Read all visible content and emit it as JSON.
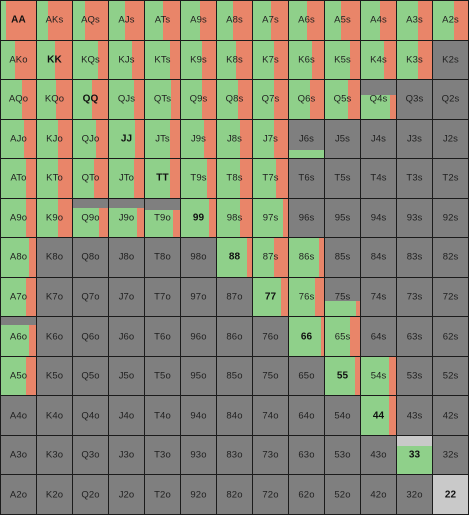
{
  "ranks": [
    "A",
    "K",
    "Q",
    "J",
    "T",
    "9",
    "8",
    "7",
    "6",
    "5",
    "4",
    "3",
    "2"
  ],
  "colors": {
    "call": "#8fd08a",
    "raise": "#e98569",
    "fold": "#7f7f7f",
    "highlight": "#c9c9c9",
    "border": "#1b1b1b"
  },
  "hands": [
    [
      "AA",
      "AKs",
      "AQs",
      "AJs",
      "ATs",
      "A9s",
      "A8s",
      "A7s",
      "A6s",
      "A5s",
      "A4s",
      "A3s",
      "A2s"
    ],
    [
      "AKo",
      "KK",
      "KQs",
      "KJs",
      "KTs",
      "K9s",
      "K8s",
      "K7s",
      "K6s",
      "K5s",
      "K4s",
      "K3s",
      "K2s"
    ],
    [
      "AQo",
      "KQo",
      "QQ",
      "QJs",
      "QTs",
      "Q9s",
      "Q8s",
      "Q7s",
      "Q6s",
      "Q5s",
      "Q4s",
      "Q3s",
      "Q2s"
    ],
    [
      "AJo",
      "KJo",
      "QJo",
      "JJ",
      "JTs",
      "J9s",
      "J8s",
      "J7s",
      "J6s",
      "J5s",
      "J4s",
      "J3s",
      "J2s"
    ],
    [
      "ATo",
      "KTo",
      "QTo",
      "JTo",
      "TT",
      "T9s",
      "T8s",
      "T7s",
      "T6s",
      "T5s",
      "T4s",
      "T3s",
      "T2s"
    ],
    [
      "A9o",
      "K9o",
      "Q9o",
      "J9o",
      "T9o",
      "99",
      "98s",
      "97s",
      "96s",
      "95s",
      "94s",
      "93s",
      "92s"
    ],
    [
      "A8o",
      "K8o",
      "Q8o",
      "J8o",
      "T8o",
      "98o",
      "88",
      "87s",
      "86s",
      "85s",
      "84s",
      "83s",
      "82s"
    ],
    [
      "A7o",
      "K7o",
      "Q7o",
      "J7o",
      "T7o",
      "97o",
      "87o",
      "77",
      "76s",
      "75s",
      "74s",
      "73s",
      "72s"
    ],
    [
      "A6o",
      "K6o",
      "Q6o",
      "J6o",
      "T6o",
      "96o",
      "86o",
      "76o",
      "66",
      "65s",
      "64s",
      "63s",
      "62s"
    ],
    [
      "A5o",
      "K5o",
      "Q5o",
      "J5o",
      "T5o",
      "95o",
      "85o",
      "75o",
      "65o",
      "55",
      "54s",
      "53s",
      "52s"
    ],
    [
      "A4o",
      "K4o",
      "Q4o",
      "J4o",
      "T4o",
      "94o",
      "84o",
      "74o",
      "64o",
      "54o",
      "44",
      "43s",
      "42s"
    ],
    [
      "A3o",
      "K3o",
      "Q3o",
      "J3o",
      "T3o",
      "93o",
      "83o",
      "73o",
      "63o",
      "53o",
      "43o",
      "33",
      "32s"
    ],
    [
      "A2o",
      "K2o",
      "Q2o",
      "J2o",
      "T2o",
      "92o",
      "82o",
      "72o",
      "62o",
      "52o",
      "42o",
      "32o",
      "22"
    ]
  ],
  "frequencies": {
    "AA": {
      "call": 0.15,
      "raise": 0.85,
      "fold": 0
    },
    "AKs": {
      "call": 0.3,
      "raise": 0.7,
      "fold": 0
    },
    "AQs": {
      "call": 0.35,
      "raise": 0.65,
      "fold": 0
    },
    "AJs": {
      "call": 0.45,
      "raise": 0.55,
      "fold": 0
    },
    "ATs": {
      "call": 0.5,
      "raise": 0.5,
      "fold": 0
    },
    "A9s": {
      "call": 0.55,
      "raise": 0.45,
      "fold": 0
    },
    "A8s": {
      "call": 0.45,
      "raise": 0.55,
      "fold": 0
    },
    "A7s": {
      "call": 0.5,
      "raise": 0.5,
      "fold": 0
    },
    "A6s": {
      "call": 0.5,
      "raise": 0.5,
      "fold": 0
    },
    "A5s": {
      "call": 0.45,
      "raise": 0.55,
      "fold": 0
    },
    "A4s": {
      "call": 0.55,
      "raise": 0.45,
      "fold": 0
    },
    "A3s": {
      "call": 0.6,
      "raise": 0.4,
      "fold": 0
    },
    "A2s": {
      "call": 0.6,
      "raise": 0.4,
      "fold": 0
    },
    "AKo": {
      "call": 0.4,
      "raise": 0.6,
      "fold": 0
    },
    "KK": {
      "call": 0.5,
      "raise": 0.5,
      "fold": 0
    },
    "KQs": {
      "call": 0.7,
      "raise": 0.3,
      "fold": 0
    },
    "KJs": {
      "call": 0.65,
      "raise": 0.35,
      "fold": 0
    },
    "KTs": {
      "call": 0.7,
      "raise": 0.3,
      "fold": 0
    },
    "K9s": {
      "call": 0.6,
      "raise": 0.4,
      "fold": 0
    },
    "K8s": {
      "call": 0.55,
      "raise": 0.45,
      "fold": 0
    },
    "K7s": {
      "call": 0.6,
      "raise": 0.4,
      "fold": 0
    },
    "K6s": {
      "call": 0.65,
      "raise": 0.35,
      "fold": 0
    },
    "K5s": {
      "call": 0.7,
      "raise": 0.3,
      "fold": 0
    },
    "K4s": {
      "call": 0.65,
      "raise": 0.35,
      "fold": 0
    },
    "K3s": {
      "call": 0.6,
      "raise": 0.4,
      "fold": 0
    },
    "K2s": {
      "call": 0,
      "raise": 0,
      "fold": 1
    },
    "AQo": {
      "call": 0.6,
      "raise": 0.4,
      "fold": 0
    },
    "KQo": {
      "call": 0.55,
      "raise": 0.45,
      "fold": 0
    },
    "QQ": {
      "call": 0.55,
      "raise": 0.45,
      "fold": 0
    },
    "QJs": {
      "call": 0.7,
      "raise": 0.3,
      "fold": 0
    },
    "QTs": {
      "call": 0.75,
      "raise": 0.25,
      "fold": 0
    },
    "Q9s": {
      "call": 0.6,
      "raise": 0.4,
      "fold": 0
    },
    "Q8s": {
      "call": 0.6,
      "raise": 0.4,
      "fold": 0
    },
    "Q7s": {
      "call": 0.6,
      "raise": 0.4,
      "fold": 0
    },
    "Q6s": {
      "call": 0.6,
      "raise": 0.4,
      "fold": 0
    },
    "Q5s": {
      "call": 0.65,
      "raise": 0.35,
      "fold": 0
    },
    "Q4s": {
      "call": 0.5,
      "raise": 0.1,
      "fold": 0.4
    },
    "Q3s": {
      "call": 0,
      "raise": 0,
      "fold": 1
    },
    "Q2s": {
      "call": 0,
      "raise": 0,
      "fold": 1
    },
    "AJo": {
      "call": 0.65,
      "raise": 0.35,
      "fold": 0
    },
    "KJo": {
      "call": 0.6,
      "raise": 0.4,
      "fold": 0
    },
    "QJo": {
      "call": 0.65,
      "raise": 0.35,
      "fold": 0
    },
    "JJ": {
      "call": 0.75,
      "raise": 0.25,
      "fold": 0
    },
    "JTs": {
      "call": 0.7,
      "raise": 0.3,
      "fold": 0
    },
    "J9s": {
      "call": 0.65,
      "raise": 0.35,
      "fold": 0
    },
    "J8s": {
      "call": 0.65,
      "raise": 0.35,
      "fold": 0
    },
    "J7s": {
      "call": 0.6,
      "raise": 0.4,
      "fold": 0
    },
    "J6s": {
      "call": 0.22,
      "raise": 0,
      "fold": 0.78
    },
    "J5s": {
      "call": 0,
      "raise": 0,
      "fold": 1
    },
    "J4s": {
      "call": 0,
      "raise": 0,
      "fold": 1
    },
    "J3s": {
      "call": 0,
      "raise": 0,
      "fold": 1
    },
    "J2s": {
      "call": 0,
      "raise": 0,
      "fold": 1
    },
    "ATo": {
      "call": 0.7,
      "raise": 0.3,
      "fold": 0
    },
    "KTo": {
      "call": 0.6,
      "raise": 0.4,
      "fold": 0
    },
    "QTo": {
      "call": 0.6,
      "raise": 0.4,
      "fold": 0
    },
    "JTo": {
      "call": 0.7,
      "raise": 0.3,
      "fold": 0
    },
    "TT": {
      "call": 0.7,
      "raise": 0.3,
      "fold": 0
    },
    "T9s": {
      "call": 0.75,
      "raise": 0.25,
      "fold": 0
    },
    "T8s": {
      "call": 0.65,
      "raise": 0.35,
      "fold": 0
    },
    "T7s": {
      "call": 0.65,
      "raise": 0.35,
      "fold": 0
    },
    "T6s": {
      "call": 0,
      "raise": 0,
      "fold": 1
    },
    "T5s": {
      "call": 0,
      "raise": 0,
      "fold": 1
    },
    "T4s": {
      "call": 0,
      "raise": 0,
      "fold": 1
    },
    "T3s": {
      "call": 0,
      "raise": 0,
      "fold": 1
    },
    "T2s": {
      "call": 0,
      "raise": 0,
      "fold": 1
    },
    "A9o": {
      "call": 0.7,
      "raise": 0.3,
      "fold": 0
    },
    "K9o": {
      "call": 0.6,
      "raise": 0.4,
      "fold": 0
    },
    "Q9o": {
      "call": 0.55,
      "raise": 0.2,
      "fold": 0.25
    },
    "J9o": {
      "call": 0.6,
      "raise": 0.15,
      "fold": 0.25
    },
    "T9o": {
      "call": 0.55,
      "raise": 0.15,
      "fold": 0.3
    },
    "99": {
      "call": 0.8,
      "raise": 0.2,
      "fold": 0
    },
    "98s": {
      "call": 0.65,
      "raise": 0.35,
      "fold": 0
    },
    "97s": {
      "call": 0.85,
      "raise": 0.15,
      "fold": 0
    },
    "96s": {
      "call": 0,
      "raise": 0,
      "fold": 1
    },
    "95s": {
      "call": 0,
      "raise": 0,
      "fold": 1
    },
    "94s": {
      "call": 0,
      "raise": 0,
      "fold": 1
    },
    "93s": {
      "call": 0,
      "raise": 0,
      "fold": 1
    },
    "92s": {
      "call": 0,
      "raise": 0,
      "fold": 1
    },
    "A8o": {
      "call": 0.8,
      "raise": 0.2,
      "fold": 0
    },
    "K8o": {
      "call": 0,
      "raise": 0,
      "fold": 1
    },
    "Q8o": {
      "call": 0,
      "raise": 0,
      "fold": 1
    },
    "J8o": {
      "call": 0,
      "raise": 0,
      "fold": 1
    },
    "T8o": {
      "call": 0,
      "raise": 0,
      "fold": 1
    },
    "98o": {
      "call": 0,
      "raise": 0,
      "fold": 1
    },
    "88": {
      "call": 0.85,
      "raise": 0.15,
      "fold": 0
    },
    "87s": {
      "call": 0.6,
      "raise": 0.4,
      "fold": 0
    },
    "86s": {
      "call": 0.85,
      "raise": 0.15,
      "fold": 0
    },
    "85s": {
      "call": 0,
      "raise": 0,
      "fold": 1
    },
    "84s": {
      "call": 0,
      "raise": 0,
      "fold": 1
    },
    "83s": {
      "call": 0,
      "raise": 0,
      "fold": 1
    },
    "82s": {
      "call": 0,
      "raise": 0,
      "fold": 1
    },
    "A7o": {
      "call": 0.7,
      "raise": 0.3,
      "fold": 0
    },
    "K7o": {
      "call": 0,
      "raise": 0,
      "fold": 1
    },
    "Q7o": {
      "call": 0,
      "raise": 0,
      "fold": 1
    },
    "J7o": {
      "call": 0,
      "raise": 0,
      "fold": 1
    },
    "T7o": {
      "call": 0,
      "raise": 0,
      "fold": 1
    },
    "97o": {
      "call": 0,
      "raise": 0,
      "fold": 1
    },
    "87o": {
      "call": 0,
      "raise": 0,
      "fold": 1
    },
    "77": {
      "call": 0.8,
      "raise": 0.2,
      "fold": 0
    },
    "76s": {
      "call": 0.75,
      "raise": 0.25,
      "fold": 0
    },
    "75s": {
      "call": 0.35,
      "raise": 0.05,
      "fold": 0.6
    },
    "74s": {
      "call": 0,
      "raise": 0,
      "fold": 1
    },
    "73s": {
      "call": 0,
      "raise": 0,
      "fold": 1
    },
    "72s": {
      "call": 0,
      "raise": 0,
      "fold": 1
    },
    "A6o": {
      "call": 0.65,
      "raise": 0.15,
      "fold": 0.2
    },
    "K6o": {
      "call": 0,
      "raise": 0,
      "fold": 1
    },
    "Q6o": {
      "call": 0,
      "raise": 0,
      "fold": 1
    },
    "J6o": {
      "call": 0,
      "raise": 0,
      "fold": 1
    },
    "T6o": {
      "call": 0,
      "raise": 0,
      "fold": 1
    },
    "96o": {
      "call": 0,
      "raise": 0,
      "fold": 1
    },
    "86o": {
      "call": 0,
      "raise": 0,
      "fold": 1
    },
    "76o": {
      "call": 0,
      "raise": 0,
      "fold": 1
    },
    "66": {
      "call": 0.9,
      "raise": 0.1,
      "fold": 0
    },
    "65s": {
      "call": 0.7,
      "raise": 0.3,
      "fold": 0
    },
    "64s": {
      "call": 0,
      "raise": 0,
      "fold": 1
    },
    "63s": {
      "call": 0,
      "raise": 0,
      "fold": 1
    },
    "62s": {
      "call": 0,
      "raise": 0,
      "fold": 1
    },
    "A5o": {
      "call": 0.7,
      "raise": 0.3,
      "fold": 0
    },
    "K5o": {
      "call": 0,
      "raise": 0,
      "fold": 1
    },
    "Q5o": {
      "call": 0,
      "raise": 0,
      "fold": 1
    },
    "J5o": {
      "call": 0,
      "raise": 0,
      "fold": 1
    },
    "T5o": {
      "call": 0,
      "raise": 0,
      "fold": 1
    },
    "95o": {
      "call": 0,
      "raise": 0,
      "fold": 1
    },
    "85o": {
      "call": 0,
      "raise": 0,
      "fold": 1
    },
    "75o": {
      "call": 0,
      "raise": 0,
      "fold": 1
    },
    "65o": {
      "call": 0,
      "raise": 0,
      "fold": 1
    },
    "55": {
      "call": 0.85,
      "raise": 0.15,
      "fold": 0
    },
    "54s": {
      "call": 0.8,
      "raise": 0.2,
      "fold": 0
    },
    "53s": {
      "call": 0,
      "raise": 0,
      "fold": 1
    },
    "52s": {
      "call": 0,
      "raise": 0,
      "fold": 1
    },
    "A4o": {
      "call": 0,
      "raise": 0,
      "fold": 1
    },
    "K4o": {
      "call": 0,
      "raise": 0,
      "fold": 1
    },
    "Q4o": {
      "call": 0,
      "raise": 0,
      "fold": 1
    },
    "J4o": {
      "call": 0,
      "raise": 0,
      "fold": 1
    },
    "T4o": {
      "call": 0,
      "raise": 0,
      "fold": 1
    },
    "94o": {
      "call": 0,
      "raise": 0,
      "fold": 1
    },
    "84o": {
      "call": 0,
      "raise": 0,
      "fold": 1
    },
    "74o": {
      "call": 0,
      "raise": 0,
      "fold": 1
    },
    "64o": {
      "call": 0,
      "raise": 0,
      "fold": 1
    },
    "54o": {
      "call": 0,
      "raise": 0,
      "fold": 1
    },
    "44": {
      "call": 0.8,
      "raise": 0.2,
      "fold": 0
    },
    "43s": {
      "call": 0,
      "raise": 0,
      "fold": 1
    },
    "42s": {
      "call": 0,
      "raise": 0,
      "fold": 1
    },
    "A3o": {
      "call": 0,
      "raise": 0,
      "fold": 1
    },
    "K3o": {
      "call": 0,
      "raise": 0,
      "fold": 1
    },
    "Q3o": {
      "call": 0,
      "raise": 0,
      "fold": 1
    },
    "J3o": {
      "call": 0,
      "raise": 0,
      "fold": 1
    },
    "T3o": {
      "call": 0,
      "raise": 0,
      "fold": 1
    },
    "93o": {
      "call": 0,
      "raise": 0,
      "fold": 1
    },
    "83o": {
      "call": 0,
      "raise": 0,
      "fold": 1
    },
    "73o": {
      "call": 0,
      "raise": 0,
      "fold": 1
    },
    "63o": {
      "call": 0,
      "raise": 0,
      "fold": 1
    },
    "53o": {
      "call": 0,
      "raise": 0,
      "fold": 1
    },
    "43o": {
      "call": 0,
      "raise": 0,
      "fold": 1
    },
    "33": {
      "call": 0.75,
      "raise": 0,
      "fold": 0,
      "highlight": 0.25
    },
    "32s": {
      "call": 0,
      "raise": 0,
      "fold": 1
    },
    "A2o": {
      "call": 0,
      "raise": 0,
      "fold": 1
    },
    "K2o": {
      "call": 0,
      "raise": 0,
      "fold": 1
    },
    "Q2o": {
      "call": 0,
      "raise": 0,
      "fold": 1
    },
    "J2o": {
      "call": 0,
      "raise": 0,
      "fold": 1
    },
    "T2o": {
      "call": 0,
      "raise": 0,
      "fold": 1
    },
    "92o": {
      "call": 0,
      "raise": 0,
      "fold": 1
    },
    "82o": {
      "call": 0,
      "raise": 0,
      "fold": 1
    },
    "72o": {
      "call": 0,
      "raise": 0,
      "fold": 1
    },
    "62o": {
      "call": 0,
      "raise": 0,
      "fold": 1
    },
    "52o": {
      "call": 0,
      "raise": 0,
      "fold": 1
    },
    "42o": {
      "call": 0,
      "raise": 0,
      "fold": 1
    },
    "32o": {
      "call": 0,
      "raise": 0,
      "fold": 1
    },
    "22": {
      "call": 0,
      "raise": 0,
      "fold": 0,
      "highlight": 1
    }
  }
}
